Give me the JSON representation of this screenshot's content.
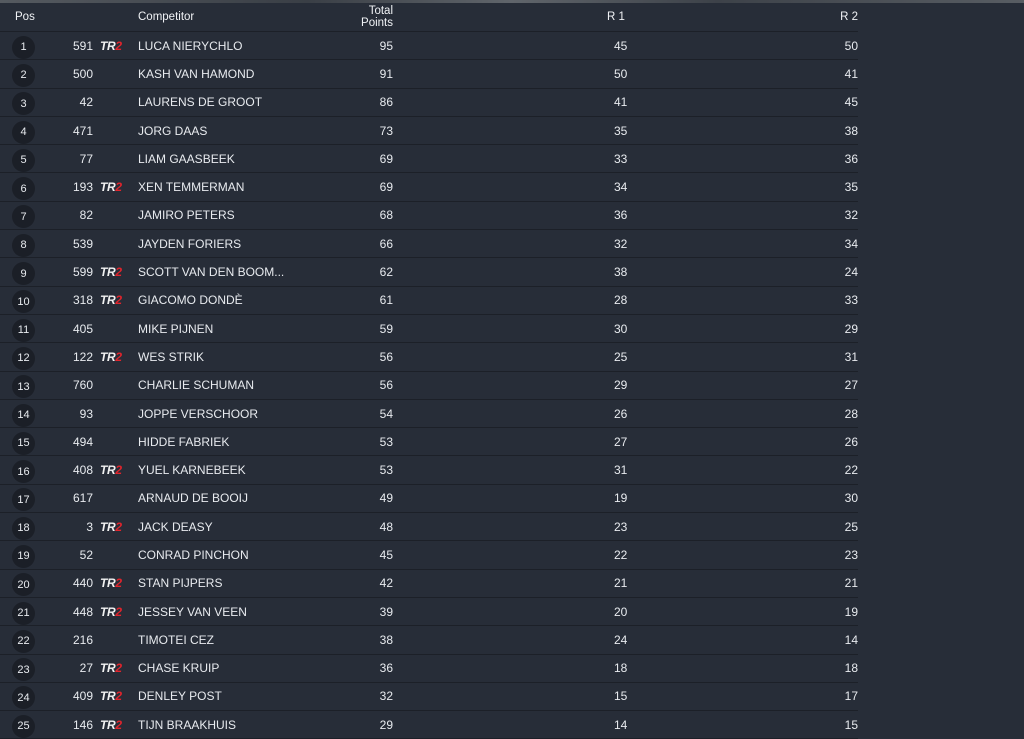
{
  "headers": {
    "pos": "Pos",
    "competitor": "Competitor",
    "total": "Total Points",
    "r1": "R 1",
    "r2": "R 2"
  },
  "tag": {
    "text_a": "TR",
    "text_b": "2",
    "color": "#e0242c"
  },
  "colors": {
    "background": "#272d38",
    "row_divider": "#1c2028",
    "pos_badge": "#1b1f27"
  },
  "rows": [
    {
      "pos": "1",
      "num": "591",
      "tr2": true,
      "name": "LUCA NIERYCHLO",
      "total": "95",
      "r1": "45",
      "r2": "50"
    },
    {
      "pos": "2",
      "num": "500",
      "tr2": false,
      "name": "KASH VAN HAMOND",
      "total": "91",
      "r1": "50",
      "r2": "41"
    },
    {
      "pos": "3",
      "num": "42",
      "tr2": false,
      "name": "LAURENS DE GROOT",
      "total": "86",
      "r1": "41",
      "r2": "45"
    },
    {
      "pos": "4",
      "num": "471",
      "tr2": false,
      "name": "JORG DAAS",
      "total": "73",
      "r1": "35",
      "r2": "38"
    },
    {
      "pos": "5",
      "num": "77",
      "tr2": false,
      "name": "LIAM GAASBEEK",
      "total": "69",
      "r1": "33",
      "r2": "36"
    },
    {
      "pos": "6",
      "num": "193",
      "tr2": true,
      "name": "XEN TEMMERMAN",
      "total": "69",
      "r1": "34",
      "r2": "35"
    },
    {
      "pos": "7",
      "num": "82",
      "tr2": false,
      "name": "JAMIRO PETERS",
      "total": "68",
      "r1": "36",
      "r2": "32"
    },
    {
      "pos": "8",
      "num": "539",
      "tr2": false,
      "name": "JAYDEN FORIERS",
      "total": "66",
      "r1": "32",
      "r2": "34"
    },
    {
      "pos": "9",
      "num": "599",
      "tr2": true,
      "name": "SCOTT VAN DEN BOOM...",
      "total": "62",
      "r1": "38",
      "r2": "24"
    },
    {
      "pos": "10",
      "num": "318",
      "tr2": true,
      "name": "GIACOMO DONDÈ",
      "total": "61",
      "r1": "28",
      "r2": "33"
    },
    {
      "pos": "11",
      "num": "405",
      "tr2": false,
      "name": "MIKE PIJNEN",
      "total": "59",
      "r1": "30",
      "r2": "29"
    },
    {
      "pos": "12",
      "num": "122",
      "tr2": true,
      "name": "WES STRIK",
      "total": "56",
      "r1": "25",
      "r2": "31"
    },
    {
      "pos": "13",
      "num": "760",
      "tr2": false,
      "name": "CHARLIE SCHUMAN",
      "total": "56",
      "r1": "29",
      "r2": "27"
    },
    {
      "pos": "14",
      "num": "93",
      "tr2": false,
      "name": "JOPPE VERSCHOOR",
      "total": "54",
      "r1": "26",
      "r2": "28"
    },
    {
      "pos": "15",
      "num": "494",
      "tr2": false,
      "name": "HIDDE FABRIEK",
      "total": "53",
      "r1": "27",
      "r2": "26"
    },
    {
      "pos": "16",
      "num": "408",
      "tr2": true,
      "name": "YUEL KARNEBEEK",
      "total": "53",
      "r1": "31",
      "r2": "22"
    },
    {
      "pos": "17",
      "num": "617",
      "tr2": false,
      "name": "ARNAUD DE BOOIJ",
      "total": "49",
      "r1": "19",
      "r2": "30"
    },
    {
      "pos": "18",
      "num": "3",
      "tr2": true,
      "name": "JACK DEASY",
      "total": "48",
      "r1": "23",
      "r2": "25"
    },
    {
      "pos": "19",
      "num": "52",
      "tr2": false,
      "name": "CONRAD PINCHON",
      "total": "45",
      "r1": "22",
      "r2": "23"
    },
    {
      "pos": "20",
      "num": "440",
      "tr2": true,
      "name": "STAN PIJPERS",
      "total": "42",
      "r1": "21",
      "r2": "21"
    },
    {
      "pos": "21",
      "num": "448",
      "tr2": true,
      "name": "JESSEY VAN VEEN",
      "total": "39",
      "r1": "20",
      "r2": "19"
    },
    {
      "pos": "22",
      "num": "216",
      "tr2": false,
      "name": "TIMOTEI CEZ",
      "total": "38",
      "r1": "24",
      "r2": "14"
    },
    {
      "pos": "23",
      "num": "27",
      "tr2": true,
      "name": "CHASE KRUIP",
      "total": "36",
      "r1": "18",
      "r2": "18"
    },
    {
      "pos": "24",
      "num": "409",
      "tr2": true,
      "name": "DENLEY POST",
      "total": "32",
      "r1": "15",
      "r2": "17"
    },
    {
      "pos": "25",
      "num": "146",
      "tr2": true,
      "name": "TIJN BRAAKHUIS",
      "total": "29",
      "r1": "14",
      "r2": "15"
    }
  ]
}
